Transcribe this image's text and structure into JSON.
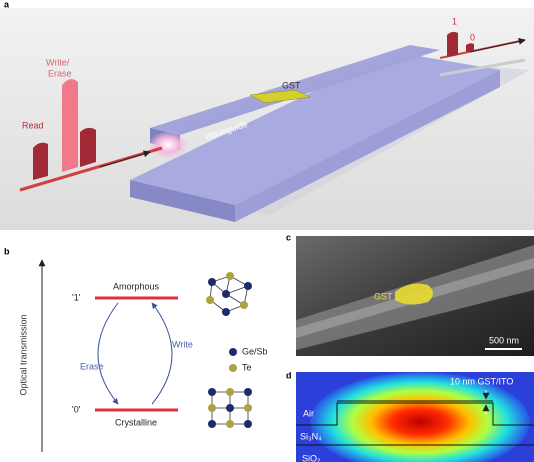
{
  "panel_a": {
    "label": "a",
    "write_erase": [
      "Write/",
      "Erase"
    ],
    "read": "Read",
    "gst": "GST",
    "waveguide": "Waveguide",
    "output_1": "1",
    "output_0": "0"
  },
  "panel_b": {
    "label": "b",
    "y_axis": "Optical transmission",
    "state_1": "'1'",
    "state_0": "'0'",
    "amorphous": "Amorphous",
    "crystalline": "Crystalline",
    "write": "Write",
    "erase": "Erase",
    "legend": [
      "Ge/Sb",
      "Te"
    ]
  },
  "panel_c": {
    "label": "c",
    "gst": "GST",
    "scale_bar": "500 nm"
  },
  "panel_d": {
    "label": "d",
    "thickness": "10 nm GST/ITO",
    "air": "Air",
    "si3n4": "Si₃N₄",
    "sio2": "SiO₂"
  }
}
